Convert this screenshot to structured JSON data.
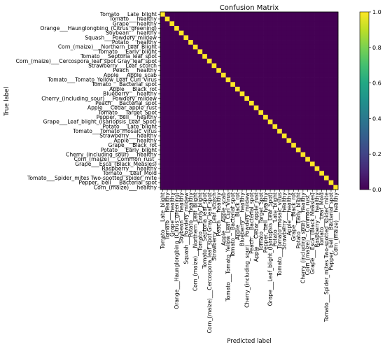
{
  "chart_data": {
    "type": "heatmap",
    "title": "Confusion Matrix",
    "xlabel": "Predicted label",
    "ylabel": "True label",
    "labels": [
      "Tomato___Late_blight",
      "Tomato___healthy",
      "Grape___healthy",
      "Orange___Haunglongbing_(Citrus_greening)",
      "Soybean___healthy",
      "Squash___Powdery_mildew",
      "Potato___healthy",
      "Corn_(maize)___Northern_Leaf_Blight",
      "Tomato___Early_blight",
      "Tomato___Septoria_leaf_spot",
      "Corn_(maize)___Cercospora_leaf_spot Gray_leaf_spot",
      "Strawberry___Leaf_scorch",
      "Peach___healthy",
      "Apple___Apple_scab",
      "Tomato___Tomato_Yellow_Leaf_Curl_Virus",
      "Tomato___Bacterial_spot",
      "Apple___Black_rot",
      "Blueberry___healthy",
      "Cherry_(including_sour)___Powdery_mildew",
      "Peach___Bacterial_spot",
      "Apple___Cedar_apple_rust",
      "Tomato___Target_Spot",
      "Pepper,_bell___healthy",
      "Grape___Leaf_blight_(Isariopsis_Leaf_Spot)",
      "Potato___Late_blight",
      "Tomato___Tomato_mosaic_virus",
      "Strawberry___healthy",
      "Apple___healthy",
      "Grape___Black_rot",
      "Potato___Early_blight",
      "Cherry_(including_sour)___healthy",
      "Corn_(maize)___Common_rust_",
      "Grape___Esca_(Black_Measles)",
      "Raspberry___healthy",
      "Tomato___Leaf_Mold",
      "Tomato___Spider_mites Two-spotted_spider_mite",
      "Pepper,_bell___Bacterial_spot",
      "Corn_(maize)___healthy"
    ],
    "matrix_description": "normalized confusion matrix, 1.0 on the diagonal and 0.0 elsewhere",
    "diagonal_value": 1.0,
    "off_diagonal_value": 0.0,
    "colormap": "viridis",
    "colorbar": {
      "range": [
        0.0,
        1.0
      ],
      "ticks": [
        "0.0",
        "0.2",
        "0.4",
        "0.6",
        "0.8",
        "1.0"
      ]
    },
    "colors": {
      "low": "#440154",
      "high": "#fde725"
    }
  }
}
